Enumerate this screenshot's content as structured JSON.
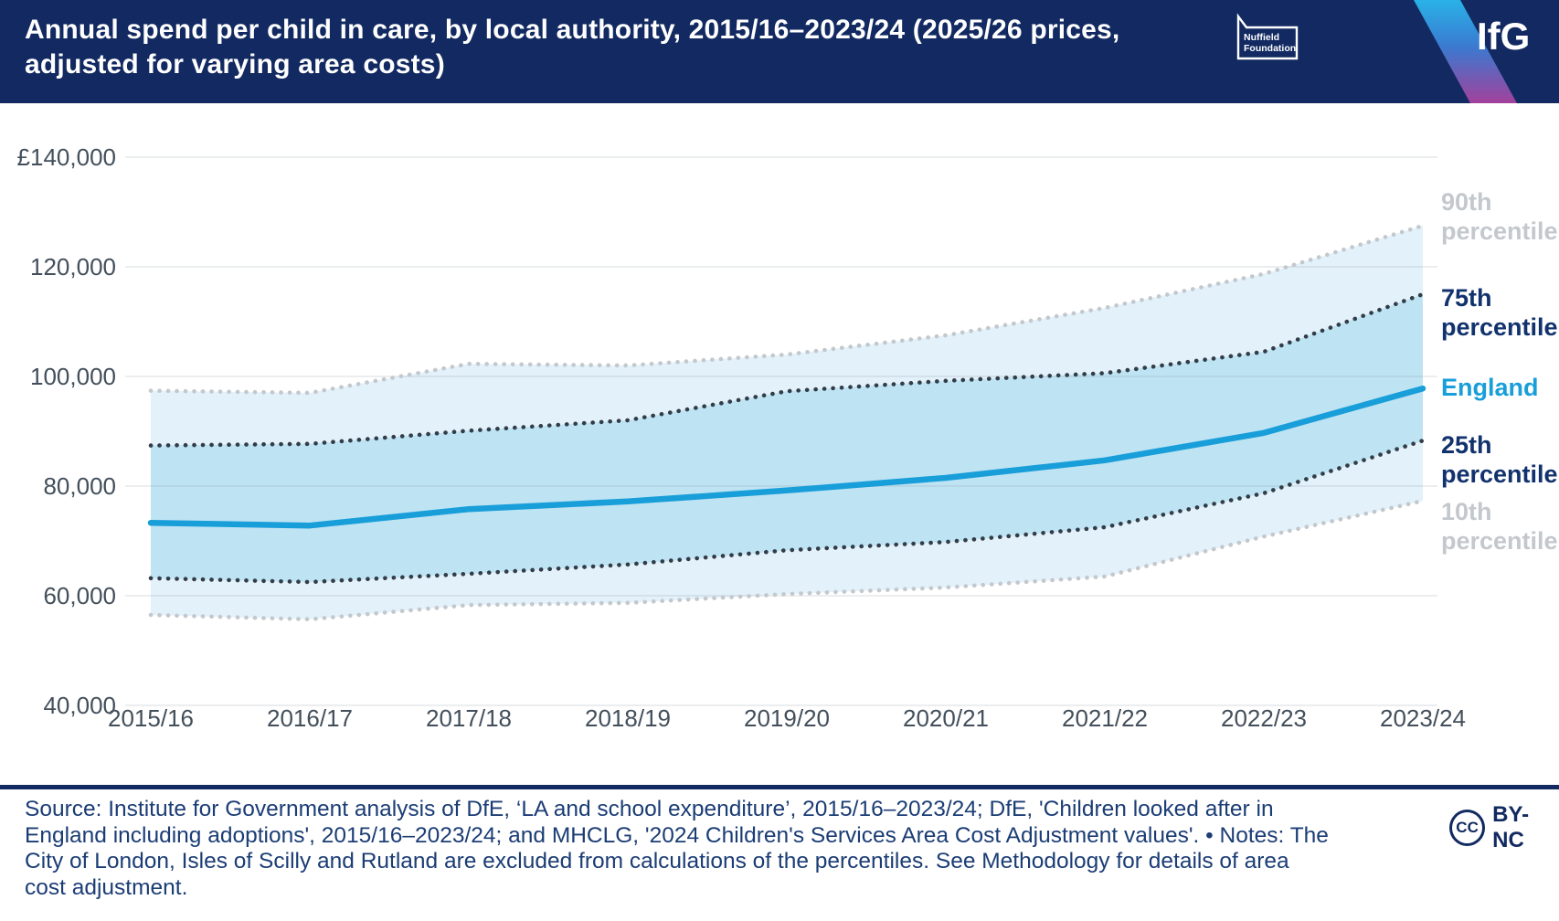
{
  "header": {
    "nuffield_logo": {
      "line1": "Nuffield",
      "line2": "Foundation"
    },
    "ifg_logo": "IfG"
  },
  "chart_data": {
    "type": "area",
    "title": "Annual spend per child in care, by local authority, 2015/16–2023/24 (2025/26 prices, adjusted for varying area costs)",
    "xlabel": "",
    "ylabel": "",
    "categories": [
      "2015/16",
      "2016/17",
      "2017/18",
      "2018/19",
      "2019/20",
      "2020/21",
      "2021/22",
      "2022/23",
      "2023/24"
    ],
    "series": [
      {
        "name": "90th percentile",
        "style": "dotted",
        "color": "#c3c8cd",
        "values": [
          97400,
          97000,
          102300,
          102000,
          104000,
          107500,
          112500,
          118700,
          127500
        ]
      },
      {
        "name": "10th percentile",
        "style": "dotted",
        "color": "#c3c8cd",
        "values": [
          56500,
          55700,
          58300,
          58700,
          60300,
          61500,
          63500,
          70800,
          77300
        ]
      },
      {
        "name": "75th percentile",
        "style": "dotted",
        "color": "#323d48",
        "values": [
          87400,
          87700,
          90100,
          92000,
          97300,
          99200,
          100600,
          104500,
          115000
        ]
      },
      {
        "name": "25th percentile",
        "style": "dotted",
        "color": "#323d48",
        "values": [
          63200,
          62500,
          64000,
          65700,
          68300,
          69800,
          72500,
          78700,
          88300
        ]
      },
      {
        "name": "England",
        "style": "solid",
        "color": "#189ed9",
        "values": [
          73300,
          72800,
          75800,
          77200,
          79200,
          81500,
          84700,
          89700,
          97800
        ]
      }
    ],
    "bands": [
      {
        "upper": "90th percentile",
        "lower": "10th percentile",
        "color": "#e3f1fa"
      },
      {
        "upper": "75th percentile",
        "lower": "25th percentile",
        "color": "#bee3f3"
      }
    ],
    "ylim": [
      40000,
      140000
    ],
    "yticks": [
      {
        "value": 140000,
        "label": "£140,000"
      },
      {
        "value": 120000,
        "label": "120,000"
      },
      {
        "value": 100000,
        "label": "100,000"
      },
      {
        "value": 80000,
        "label": "80,000"
      },
      {
        "value": 60000,
        "label": "60,000"
      },
      {
        "value": 40000,
        "label": "40,000"
      }
    ],
    "grid": "horizontal",
    "legend_position": "right"
  },
  "legend": [
    {
      "line1": "90th",
      "line2": "percentile",
      "color": "#c3c8cd"
    },
    {
      "line1": "75th",
      "line2": "percentile",
      "color": "#12326e"
    },
    {
      "line1": "England",
      "line2": "",
      "color": "#189ed9"
    },
    {
      "line1": "25th",
      "line2": "percentile",
      "color": "#12326e"
    },
    {
      "line1": "10th",
      "line2": "percentile",
      "color": "#c3c8cd"
    }
  ],
  "footer": {
    "source_text": "Source: Institute for Government analysis of DfE, ‘LA and school expenditure’, 2015/16–2023/24; DfE, 'Children looked after in England including adoptions', 2015/16–2023/24; and MHCLG, '2024 Children's Services Area Cost Adjustment values'. • Notes: The City of London, Isles of Scilly and Rutland are excluded from calculations of the percentiles. See Methodology for details of area cost adjustment.",
    "cc_symbol": "CC",
    "cc_label": "BY-NC"
  }
}
